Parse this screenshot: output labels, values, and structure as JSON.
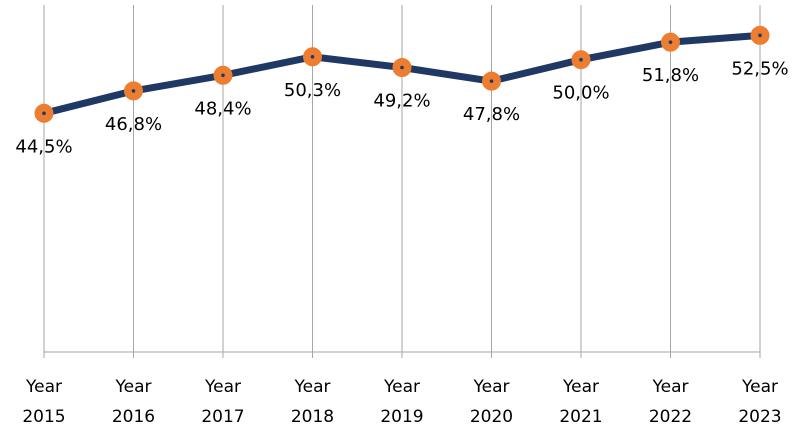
{
  "chart_data": {
    "type": "line",
    "categories": [
      "Year 2015",
      "Year 2016",
      "Year 2017",
      "Year 2018",
      "Year 2019",
      "Year 2020",
      "Year 2021",
      "Year 2022",
      "Year 2023"
    ],
    "series": [
      {
        "color": "#1f3864",
        "marker_color": "#ed7d31",
        "values": [
          44.5,
          46.8,
          48.4,
          50.3,
          49.2,
          47.8,
          50.0,
          51.8,
          52.5
        ],
        "value_labels": [
          "44,5%",
          "46,8%",
          "48,4%",
          "50,3%",
          "49,2%",
          "47,8%",
          "50,0%",
          "51,8%",
          "52,5%"
        ]
      }
    ],
    "ylim": [
      20,
      55
    ],
    "grid": true
  }
}
